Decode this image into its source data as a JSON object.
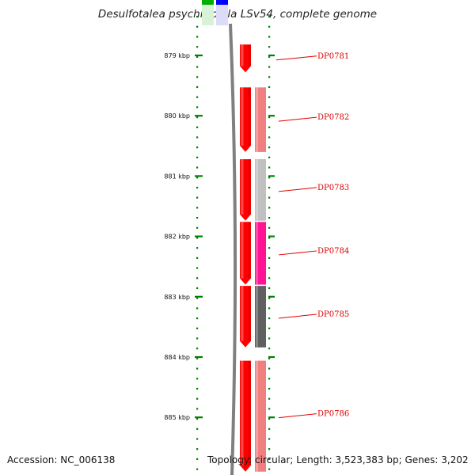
{
  "title": "Desulfotalea psychrophila LSv54, complete genome",
  "footer": {
    "accession": "Accession: NC_006138",
    "summary": "Topology: circular; Length: 3,523,383 bp; Genes: 3,202"
  },
  "scale": [
    {
      "label": "879 kbp",
      "kbp": 879
    },
    {
      "label": "880 kbp",
      "kbp": 880
    },
    {
      "label": "881 kbp",
      "kbp": 881
    },
    {
      "label": "882 kbp",
      "kbp": 882
    },
    {
      "label": "883 kbp",
      "kbp": 883
    },
    {
      "label": "884 kbp",
      "kbp": 884
    },
    {
      "label": "885 kbp",
      "kbp": 885
    }
  ],
  "genes": [
    {
      "label": "DP0781",
      "start_kbp": 878.82,
      "end_kbp": 879.28,
      "inner_color": "#ff0000",
      "outer_color": null
    },
    {
      "label": "DP0782",
      "start_kbp": 879.53,
      "end_kbp": 880.6,
      "inner_color": "#ff0000",
      "outer_color": "#f08080"
    },
    {
      "label": "DP0783",
      "start_kbp": 880.72,
      "end_kbp": 881.74,
      "inner_color": "#ff0000",
      "outer_color": "#c0c0c0"
    },
    {
      "label": "DP0784",
      "start_kbp": 881.76,
      "end_kbp": 882.8,
      "inner_color": "#ff0000",
      "outer_color": "#ff1493"
    },
    {
      "label": "DP0785",
      "start_kbp": 882.82,
      "end_kbp": 883.84,
      "inner_color": "#ff0000",
      "outer_color": "#606060"
    },
    {
      "label": "DP0786",
      "start_kbp": 884.06,
      "end_kbp": 885.9,
      "inner_color": "#ff0000",
      "outer_color": "#f08080"
    }
  ],
  "colors": {
    "accent": "#e00000",
    "tick": "#008000",
    "backbone": "#808080",
    "key_green": "#00b000",
    "key_blue": "#0000ff"
  }
}
